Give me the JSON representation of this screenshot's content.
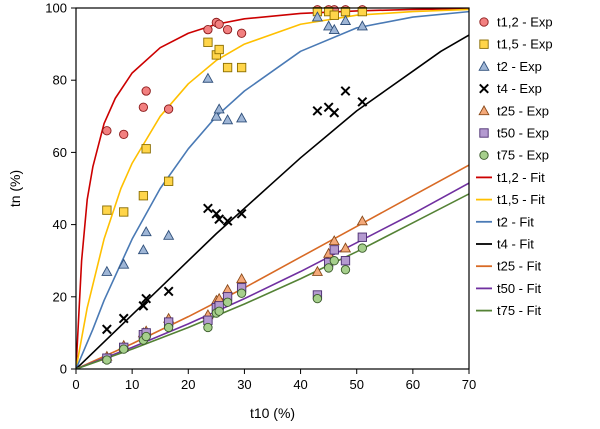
{
  "chart_data": {
    "type": "scatter",
    "xlabel": "t10 (%)",
    "ylabel": "tn (%)",
    "xlim": [
      0,
      70
    ],
    "ylim": [
      0,
      100
    ],
    "xticks": [
      0,
      10,
      20,
      30,
      40,
      50,
      60,
      70
    ],
    "yticks": [
      0,
      20,
      40,
      60,
      80,
      100
    ],
    "grid": false,
    "legend_position": "right",
    "series": [
      {
        "name": "t1,2 - Exp",
        "marker": "circle",
        "color": "#f28080",
        "edge": "#8b1a1a",
        "x": [
          5.5,
          8.5,
          12,
          12.5,
          16.5,
          23.5,
          25,
          25.5,
          27,
          29.5,
          43,
          45,
          46,
          48,
          51
        ],
        "y": [
          66,
          65,
          72.5,
          77,
          72,
          94,
          96,
          95.5,
          94,
          93,
          99.5,
          99.5,
          99.5,
          99.5,
          99.5
        ]
      },
      {
        "name": "t1,5 - Exp",
        "marker": "square",
        "color": "#ffd54a",
        "edge": "#8a6d00",
        "x": [
          5.5,
          8.5,
          12,
          12.5,
          16.5,
          23.5,
          25,
          25.5,
          27,
          29.5,
          43,
          45,
          46,
          48,
          51
        ],
        "y": [
          44,
          43.5,
          48,
          61,
          52,
          90.5,
          87,
          88.5,
          83.5,
          83.5,
          99,
          99,
          98,
          99,
          99
        ]
      },
      {
        "name": "t2 - Exp",
        "marker": "triangle",
        "color": "#9fb6d6",
        "edge": "#2f4f7a",
        "x": [
          5.5,
          8.5,
          12,
          12.5,
          16.5,
          23.5,
          25,
          25.5,
          27,
          29.5,
          43,
          45,
          46,
          48,
          51
        ],
        "y": [
          27,
          29,
          33,
          38,
          37,
          80.5,
          70,
          72,
          69,
          69.5,
          97.5,
          95,
          94,
          96.5,
          95
        ]
      },
      {
        "name": "t4 - Exp",
        "marker": "x",
        "color": "#000000",
        "edge": "#000000",
        "x": [
          5.5,
          8.5,
          12,
          12.5,
          16.5,
          23.5,
          25,
          25.5,
          27,
          29.5,
          43,
          45,
          46,
          48,
          51
        ],
        "y": [
          11,
          14,
          17.5,
          19.5,
          21.5,
          44.5,
          43,
          41.5,
          41,
          43,
          71.5,
          72.5,
          71,
          77,
          74
        ]
      },
      {
        "name": "t25 - Exp",
        "marker": "triangle",
        "color": "#f4a97a",
        "edge": "#8a4a1a",
        "x": [
          5.5,
          8.5,
          12,
          12.5,
          16.5,
          23.5,
          25,
          25.5,
          27,
          29.5,
          43,
          45,
          46,
          48,
          51
        ],
        "y": [
          3.5,
          6.5,
          10,
          10.5,
          14,
          15,
          19,
          19.5,
          22,
          25,
          27,
          32,
          35.5,
          33.5,
          41
        ]
      },
      {
        "name": "t50 - Exp",
        "marker": "square",
        "color": "#b49ad0",
        "edge": "#4a2d70",
        "x": [
          5.5,
          8.5,
          12,
          12.5,
          16.5,
          23.5,
          25,
          25.5,
          27,
          29.5,
          43,
          45,
          46,
          48,
          51
        ],
        "y": [
          3,
          6,
          9.5,
          10,
          13,
          13.5,
          17,
          17.5,
          20,
          22.5,
          20.5,
          29.5,
          33,
          30,
          36.5
        ]
      },
      {
        "name": "t75 - Exp",
        "marker": "circle",
        "color": "#a6cf8c",
        "edge": "#3a5a2a",
        "x": [
          5.5,
          8.5,
          12,
          12.5,
          16.5,
          23.5,
          25,
          25.5,
          27,
          29.5,
          43,
          45,
          46,
          48,
          51
        ],
        "y": [
          2.5,
          5.5,
          8,
          9,
          11.5,
          11.5,
          15.5,
          16,
          18.5,
          21,
          19.5,
          28,
          30,
          27.5,
          33.5
        ]
      }
    ],
    "fits": [
      {
        "name": "t1,2 - Fit",
        "color": "#cc0000",
        "x": [
          0,
          1,
          2,
          3,
          5,
          7,
          10,
          15,
          20,
          25,
          30,
          40,
          50,
          60,
          70
        ],
        "y": [
          0,
          30,
          47,
          56,
          68,
          75,
          82,
          89,
          93,
          95.5,
          97,
          98.5,
          99.2,
          99.6,
          99.8
        ]
      },
      {
        "name": "t1,5 - Fit",
        "color": "#ffc000",
        "x": [
          0,
          2,
          5,
          8,
          10,
          15,
          20,
          25,
          30,
          40,
          50,
          60,
          70
        ],
        "y": [
          0,
          17,
          36,
          50,
          57,
          70,
          79,
          85.5,
          90,
          95.5,
          98,
          99,
          99.6
        ]
      },
      {
        "name": "t2 - Fit",
        "color": "#4a7ab5",
        "x": [
          0,
          3,
          5,
          10,
          15,
          20,
          25,
          30,
          40,
          50,
          60,
          70
        ],
        "y": [
          0,
          11,
          19,
          36,
          50,
          61,
          70,
          77,
          88,
          94.5,
          97.5,
          99
        ]
      },
      {
        "name": "t4 - Fit",
        "color": "#000000",
        "x": [
          0,
          5,
          10,
          15,
          20,
          25,
          30,
          35,
          40,
          45,
          50,
          55,
          60,
          65,
          70
        ],
        "y": [
          0,
          7.5,
          15,
          22.5,
          30,
          37.5,
          44.5,
          51.5,
          58.5,
          65,
          71.5,
          77,
          82.5,
          88,
          92.5
        ]
      },
      {
        "name": "t25 - Fit",
        "color": "#d86a25",
        "x": [
          0,
          10,
          20,
          30,
          40,
          50,
          60,
          70
        ],
        "y": [
          0,
          7,
          14.5,
          22.5,
          31,
          39.5,
          48,
          56.5
        ]
      },
      {
        "name": "t50 - Fit",
        "color": "#7030a0",
        "x": [
          0,
          10,
          20,
          30,
          40,
          50,
          60,
          70
        ],
        "y": [
          0,
          6,
          12.5,
          19.5,
          27,
          35,
          43,
          51.5
        ]
      },
      {
        "name": "t75 - Fit",
        "color": "#548235",
        "x": [
          0,
          10,
          20,
          30,
          40,
          50,
          60,
          70
        ],
        "y": [
          0,
          5.5,
          11.5,
          18,
          25,
          32.5,
          40.5,
          48.5
        ]
      }
    ]
  }
}
